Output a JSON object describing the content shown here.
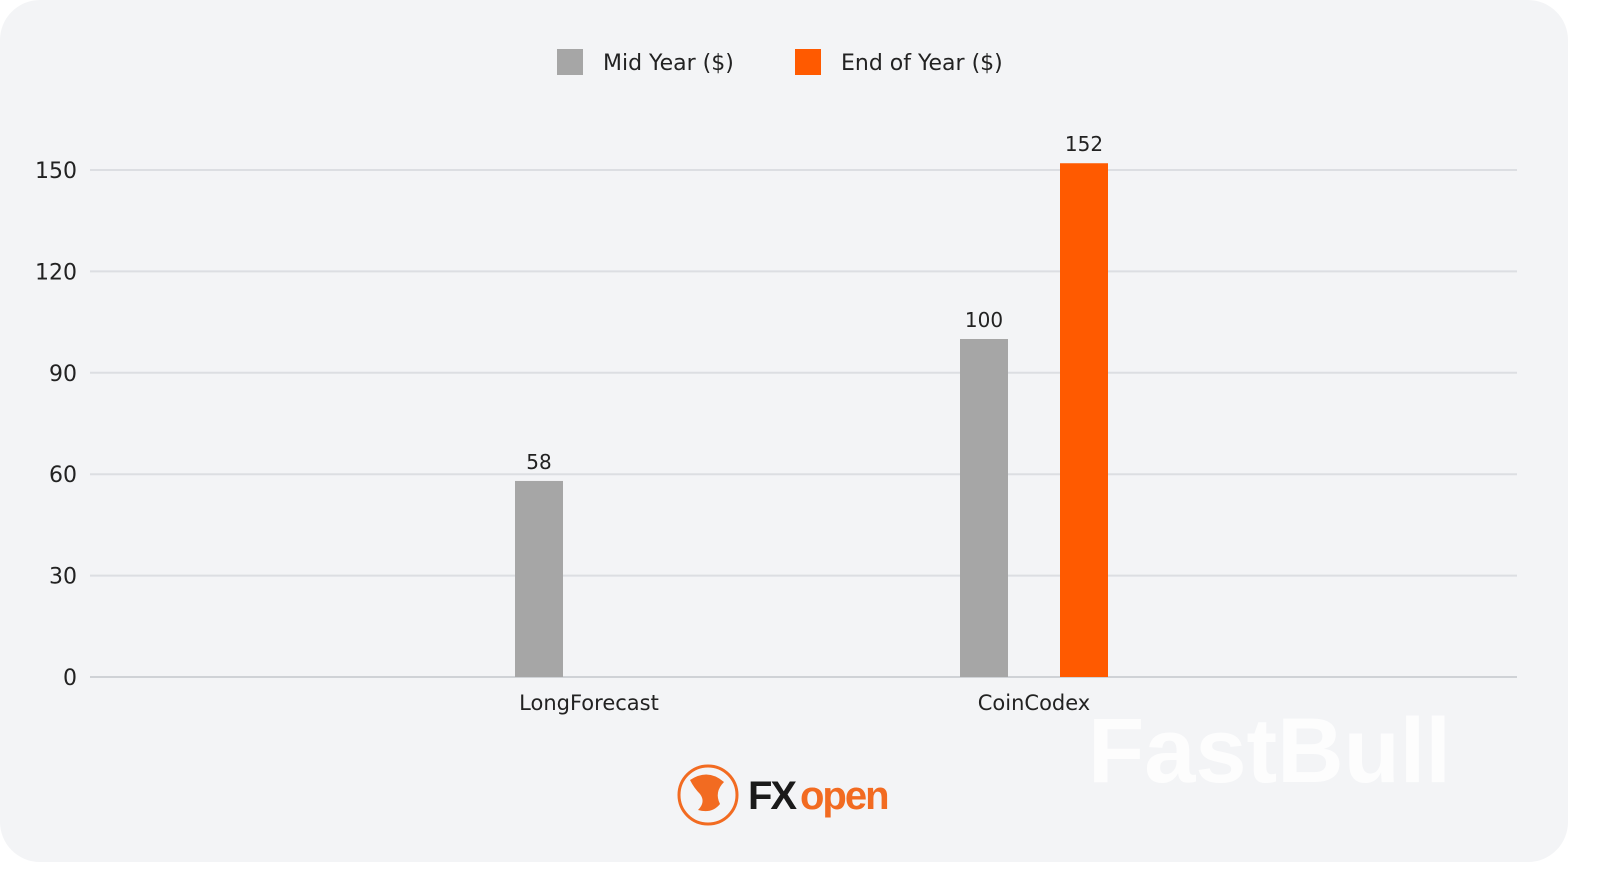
{
  "chart_data": {
    "type": "bar",
    "title": "",
    "xlabel": "",
    "ylabel": "",
    "categories": [
      "LongForecast",
      "CoinCodex"
    ],
    "series": [
      {
        "name": "Mid Year ($)",
        "color": "#a6a6a6",
        "values": [
          58,
          100
        ]
      },
      {
        "name": "End of Year ($)",
        "color": "#ff5a00",
        "values": [
          null,
          152
        ]
      }
    ],
    "data_labels": [
      [
        "58",
        "100"
      ],
      [
        "",
        "152"
      ]
    ],
    "ylim": [
      0,
      150
    ],
    "yticks": [
      "0",
      "30",
      "60",
      "90",
      "120",
      "150"
    ],
    "ytick_values": [
      0,
      30,
      60,
      90,
      120,
      150
    ],
    "grid": true,
    "legend_position": "top-center"
  },
  "branding": {
    "logo_fx": "FX",
    "logo_open": "open",
    "watermark": "FastBull"
  }
}
